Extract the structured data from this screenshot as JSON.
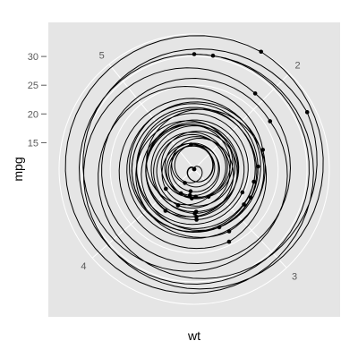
{
  "chart_data": {
    "type": "scatter",
    "coord": "polar",
    "theta_variable": "wt",
    "radius_variable": "mpg",
    "xlabel": "wt",
    "ylabel": "mpg",
    "theta_ticks": [
      "2",
      "3",
      "4",
      "5"
    ],
    "r_ticks": [
      "15",
      "20",
      "25",
      "30"
    ],
    "theta_range": [
      1.513,
      5.424
    ],
    "r_range": [
      10.4,
      33.9
    ],
    "paths_drawn_through_points": true,
    "points": [
      {
        "wt": 2.62,
        "mpg": 21.0
      },
      {
        "wt": 2.875,
        "mpg": 21.0
      },
      {
        "wt": 2.32,
        "mpg": 22.8
      },
      {
        "wt": 3.215,
        "mpg": 21.4
      },
      {
        "wt": 3.44,
        "mpg": 18.7
      },
      {
        "wt": 3.46,
        "mpg": 18.1
      },
      {
        "wt": 3.57,
        "mpg": 14.3
      },
      {
        "wt": 3.19,
        "mpg": 24.4
      },
      {
        "wt": 3.15,
        "mpg": 22.8
      },
      {
        "wt": 3.44,
        "mpg": 19.2
      },
      {
        "wt": 3.44,
        "mpg": 17.8
      },
      {
        "wt": 4.07,
        "mpg": 16.4
      },
      {
        "wt": 3.73,
        "mpg": 17.3
      },
      {
        "wt": 3.78,
        "mpg": 15.2
      },
      {
        "wt": 5.25,
        "mpg": 10.4
      },
      {
        "wt": 5.424,
        "mpg": 10.4
      },
      {
        "wt": 5.345,
        "mpg": 14.7
      },
      {
        "wt": 2.2,
        "mpg": 32.4
      },
      {
        "wt": 1.615,
        "mpg": 30.4
      },
      {
        "wt": 1.835,
        "mpg": 33.9
      },
      {
        "wt": 2.465,
        "mpg": 21.5
      },
      {
        "wt": 3.52,
        "mpg": 15.5
      },
      {
        "wt": 3.435,
        "mpg": 15.2
      },
      {
        "wt": 3.84,
        "mpg": 13.3
      },
      {
        "wt": 3.845,
        "mpg": 19.2
      },
      {
        "wt": 1.935,
        "mpg": 27.3
      },
      {
        "wt": 2.14,
        "mpg": 26.0
      },
      {
        "wt": 1.513,
        "mpg": 30.4
      },
      {
        "wt": 3.17,
        "mpg": 15.8
      },
      {
        "wt": 2.77,
        "mpg": 19.7
      },
      {
        "wt": 3.57,
        "mpg": 15.0
      },
      {
        "wt": 2.78,
        "mpg": 21.4
      }
    ],
    "colors": {
      "panel_background": "#e5e5e5",
      "grid": "#ffffff",
      "points": "#000000",
      "paths": "#000000",
      "tick_text": "#5a5a5a"
    }
  }
}
